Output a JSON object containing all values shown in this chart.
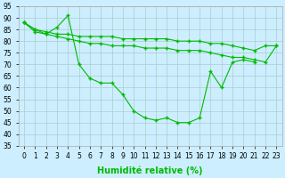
{
  "title": "",
  "xlabel": "Humidité relative (%)",
  "ylabel": "",
  "background_color": "#cceeff",
  "grid_color": "#aacccc",
  "line_color": "#00bb00",
  "x_ticks": [
    0,
    1,
    2,
    3,
    4,
    5,
    6,
    7,
    8,
    9,
    10,
    11,
    12,
    13,
    14,
    15,
    16,
    17,
    18,
    19,
    20,
    21,
    22,
    23
  ],
  "ylim": [
    35,
    95
  ],
  "xlim": [
    -0.5,
    23.5
  ],
  "yticks": [
    35,
    40,
    45,
    50,
    55,
    60,
    65,
    70,
    75,
    80,
    85,
    90,
    95
  ],
  "series1_x": [
    0,
    1,
    2,
    3,
    4,
    5,
    6,
    7,
    8,
    9,
    10,
    11,
    12,
    13,
    14,
    15,
    16,
    17,
    18,
    19,
    20,
    21
  ],
  "series1_y": [
    88,
    84,
    83,
    86,
    91,
    70,
    64,
    62,
    62,
    57,
    50,
    47,
    46,
    47,
    45,
    45,
    47,
    67,
    60,
    71,
    72,
    71
  ],
  "series2_x": [
    0,
    1,
    2,
    3,
    4,
    5,
    6,
    7,
    8,
    9,
    10,
    11,
    12,
    13,
    14,
    15,
    16,
    17,
    18,
    19,
    20,
    21,
    22,
    23
  ],
  "series2_y": [
    88,
    85,
    84,
    83,
    83,
    82,
    82,
    82,
    82,
    81,
    81,
    81,
    81,
    81,
    80,
    80,
    80,
    79,
    79,
    78,
    77,
    76,
    78,
    78
  ],
  "series3_x": [
    0,
    1,
    2,
    3,
    4,
    5,
    6,
    7,
    8,
    9,
    10,
    11,
    12,
    13,
    14,
    15,
    16,
    17,
    18,
    19,
    20,
    21,
    22,
    23
  ],
  "series3_y": [
    88,
    85,
    83,
    82,
    81,
    80,
    79,
    79,
    78,
    78,
    78,
    77,
    77,
    77,
    76,
    76,
    76,
    75,
    74,
    73,
    73,
    72,
    71,
    78
  ],
  "xlabel_color": "#00bb00",
  "tick_fontsize": 5.5,
  "xlabel_fontsize": 7
}
